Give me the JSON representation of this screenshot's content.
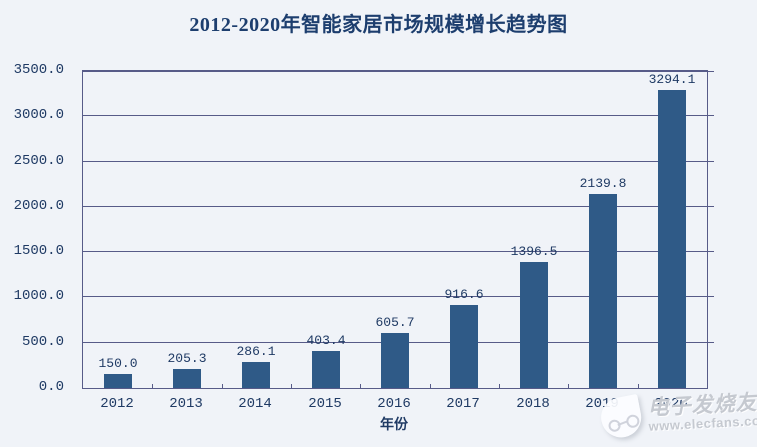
{
  "page": {
    "background_color": "#f0f3f8"
  },
  "chart_data": {
    "type": "bar",
    "title": "2012-2020年智能家居市场规模增长趋势图",
    "xlabel": "年份",
    "ylabel": "",
    "categories": [
      "2012",
      "2013",
      "2014",
      "2015",
      "2016",
      "2017",
      "2018",
      "2019",
      "2020"
    ],
    "values": [
      150.0,
      205.3,
      286.1,
      403.4,
      605.7,
      916.6,
      1396.5,
      2139.8,
      3294.1
    ],
    "data_labels": [
      "150.0",
      "205.3",
      "286.1",
      "403.4",
      "605.7",
      "916.6",
      "1396.5",
      "2139.8",
      "3294.1"
    ],
    "ylim": [
      0,
      3500
    ],
    "ytick_step": 500,
    "ytick_labels": [
      "0.0",
      "500.0",
      "1000.0",
      "1500.0",
      "2000.0",
      "2500.0",
      "3000.0",
      "3500.0"
    ],
    "grid": true,
    "legend": "none",
    "bar_color": "#2f5a87",
    "axis_color": "#575b88",
    "text_color": "#1f3a64",
    "title_color": "#1d3e6e"
  },
  "watermark": {
    "brand": "电子发烧友",
    "url": "www.elecfans.com",
    "logo": "elecfans-drop-logo"
  }
}
